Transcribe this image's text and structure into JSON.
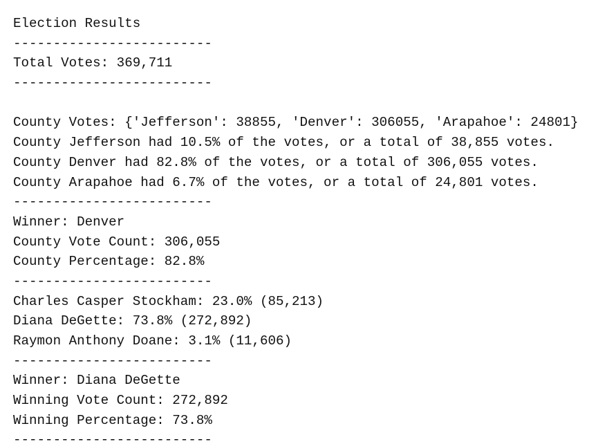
{
  "lines": [
    "Election Results",
    "-------------------------",
    "Total Votes: 369,711",
    "-------------------------",
    "County Votes: {'Jefferson': 38855, 'Denver': 306055, 'Arapahoe': 24801}",
    "County Jefferson had 10.5% of the votes, or a total of 38,855 votes.",
    "County Denver had 82.8% of the votes, or a total of 306,055 votes.",
    "County Arapahoe had 6.7% of the votes, or a total of 24,801 votes.",
    "-------------------------",
    "Winner: Denver",
    "County Vote Count: 306,055",
    "County Percentage: 82.8%",
    "-------------------------",
    "Charles Casper Stockham: 23.0% (85,213)",
    "Diana DeGette: 73.8% (272,892)",
    "Raymon Anthony Doane: 3.1% (11,606)",
    "-------------------------",
    "Winner: Diana DeGette",
    "Winning Vote Count: 272,892",
    "Winning Percentage: 73.8%",
    "-------------------------"
  ]
}
